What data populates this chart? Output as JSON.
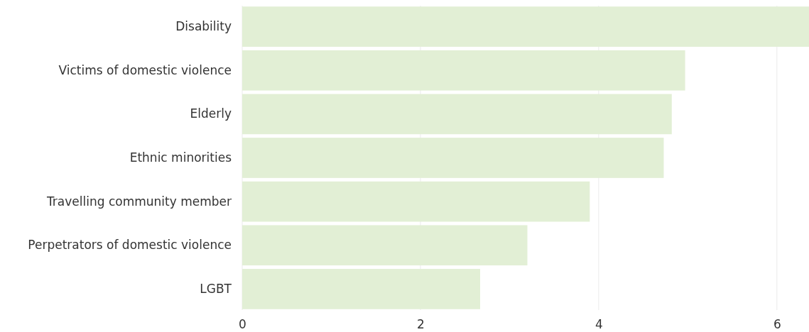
{
  "chart_data": {
    "type": "bar",
    "orientation": "horizontal",
    "categories": [
      "Disability",
      "Victims of domestic violence",
      "Elderly",
      "Ethnic minorities",
      "Travelling community member",
      "Perpetrators of domestic violence",
      "LGBT"
    ],
    "values": [
      6.36,
      4.97,
      4.82,
      4.73,
      3.9,
      3.2,
      2.67
    ],
    "color": "#e2efd5",
    "xlim": [
      0,
      6.36
    ],
    "xticks": [
      0,
      2,
      4,
      6
    ],
    "grid": "x"
  }
}
